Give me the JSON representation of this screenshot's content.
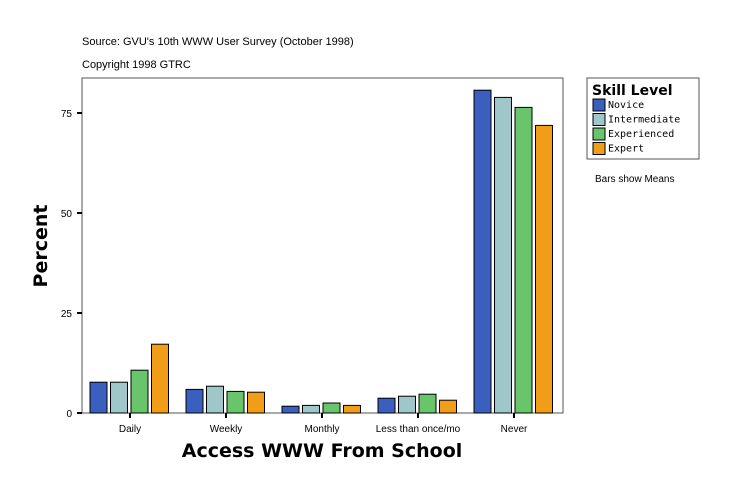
{
  "source": "Source: GVU's 10th WWW User Survey (October 1998)",
  "copyright": "Copyright 1998 GTRC",
  "note": "Bars show Means",
  "chart_data": {
    "type": "bar",
    "title": "",
    "xlabel": "Access WWW From School",
    "ylabel": "Percent",
    "ylim": [
      0,
      83.75
    ],
    "yticks": [
      0,
      25,
      50,
      75
    ],
    "grid": false,
    "legend_title": "Skill Level",
    "legend_placement": "right",
    "categories": [
      "Daily",
      "Weekly",
      "Monthly",
      "Less than once/mo",
      "Never"
    ],
    "series": [
      {
        "name": "Novice",
        "color": "#3a5fbf",
        "values": [
          7.7,
          5.9,
          1.7,
          3.7,
          80.7
        ]
      },
      {
        "name": "Intermediate",
        "color": "#9fc6c8",
        "values": [
          7.7,
          6.7,
          1.9,
          4.2,
          78.9
        ]
      },
      {
        "name": "Experienced",
        "color": "#69c56c",
        "values": [
          10.7,
          5.4,
          2.5,
          4.7,
          76.4
        ]
      },
      {
        "name": "Expert",
        "color": "#f29d17",
        "values": [
          17.2,
          5.2,
          1.9,
          3.2,
          71.9
        ]
      }
    ]
  }
}
